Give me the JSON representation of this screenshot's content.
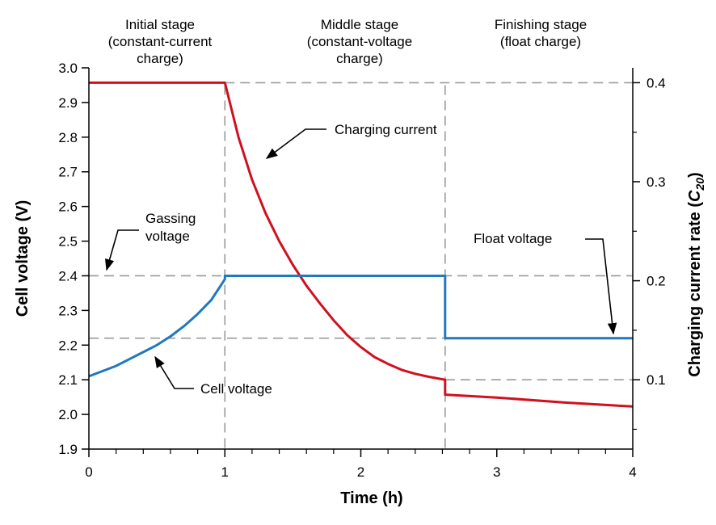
{
  "chart_data": {
    "type": "line",
    "xlabel": "Time (h)",
    "ylabel_left": "Cell voltage (V)",
    "ylabel_right_prefix": "Charging current rate (",
    "ylabel_right_var": "C",
    "ylabel_right_sub": "20",
    "ylabel_right_suffix": ")",
    "xlim": [
      0,
      4
    ],
    "ylim_left": [
      1.9,
      3.0
    ],
    "ylim_right": [
      0.03,
      0.415
    ],
    "x_ticks": [
      "0",
      "1",
      "2",
      "3",
      "4"
    ],
    "y_left_ticks": [
      "1.9",
      "2.0",
      "2.1",
      "2.2",
      "2.3",
      "2.4",
      "2.5",
      "2.6",
      "2.7",
      "2.8",
      "2.9",
      "3.0"
    ],
    "y_right_ticks": [
      "0.1",
      "0.2",
      "0.3",
      "0.4"
    ],
    "stages": [
      {
        "lines": [
          "Initial stage",
          "(constant-current",
          "charge)"
        ]
      },
      {
        "lines": [
          "Middle stage",
          "(constant-voltage",
          "charge)"
        ]
      },
      {
        "lines": [
          "Finishing stage",
          "(float charge)"
        ]
      }
    ],
    "reference_lines": {
      "vertical_x": [
        1.0,
        2.62
      ],
      "horizontal_left_v": [
        2.4,
        2.22
      ],
      "horizontal_right_rate": [
        0.4,
        0.1
      ]
    },
    "series": [
      {
        "name": "Charging current",
        "color": "#d0101e",
        "axis": "right",
        "x": [
          0,
          1.0,
          1.1,
          1.2,
          1.3,
          1.4,
          1.5,
          1.6,
          1.7,
          1.8,
          1.9,
          2.0,
          2.1,
          2.2,
          2.3,
          2.4,
          2.5,
          2.62,
          2.62,
          3.0,
          3.5,
          4.0
        ],
        "y": [
          0.4,
          0.4,
          0.345,
          0.302,
          0.268,
          0.24,
          0.216,
          0.195,
          0.177,
          0.16,
          0.145,
          0.133,
          0.123,
          0.116,
          0.11,
          0.106,
          0.103,
          0.1,
          0.085,
          0.082,
          0.077,
          0.073
        ]
      },
      {
        "name": "Cell voltage",
        "color": "#1f78c1",
        "axis": "left",
        "x": [
          0,
          0.1,
          0.2,
          0.3,
          0.4,
          0.5,
          0.6,
          0.7,
          0.8,
          0.9,
          1.0,
          1.0,
          2.62,
          2.62,
          4.0
        ],
        "y": [
          2.11,
          2.125,
          2.14,
          2.16,
          2.18,
          2.2,
          2.225,
          2.255,
          2.29,
          2.33,
          2.39,
          2.4,
          2.4,
          2.22,
          2.22
        ]
      }
    ],
    "annotations": [
      {
        "text": "Charging current"
      },
      {
        "lines": [
          "Gassing",
          "voltage"
        ]
      },
      {
        "text": "Cell voltage"
      },
      {
        "text": "Float voltage"
      }
    ],
    "colors": {
      "axis": "#000000",
      "reference": "#9a9a9a"
    }
  }
}
